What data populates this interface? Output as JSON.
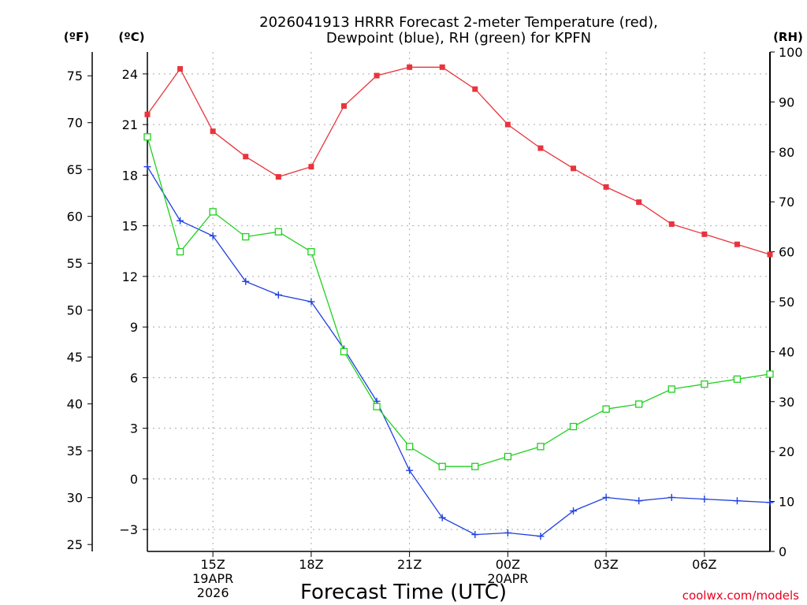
{
  "chart_data": {
    "type": "line",
    "title": [
      "2026041913 HRRR Forecast 2-meter Temperature (red),",
      "Dewpoint (blue), RH (green) for KPFN"
    ],
    "xlabel": "Forecast Time (UTC)",
    "credit": "coolwx.com/models",
    "units": {
      "fahrenheit": "(ºF)",
      "celsius": "(ºC)",
      "rh": "(RH)"
    },
    "x_hours": [
      13,
      14,
      15,
      16,
      17,
      18,
      19,
      20,
      21,
      22,
      23,
      24,
      25,
      26,
      27,
      28,
      29,
      30,
      31,
      32
    ],
    "xlim": [
      13,
      32
    ],
    "x_ticks": [
      {
        "hour": 15,
        "labels": [
          "15Z",
          "19APR",
          "2026"
        ]
      },
      {
        "hour": 18,
        "labels": [
          "18Z"
        ]
      },
      {
        "hour": 21,
        "labels": [
          "21Z"
        ]
      },
      {
        "hour": 24,
        "labels": [
          "00Z",
          "20APR"
        ]
      },
      {
        "hour": 27,
        "labels": [
          "03Z"
        ]
      },
      {
        "hour": 30,
        "labels": [
          "06Z"
        ]
      }
    ],
    "celsius_axis": {
      "ylim": [
        -4.3,
        25.3
      ],
      "ticks": [
        -3,
        0,
        3,
        6,
        9,
        12,
        15,
        18,
        21,
        24
      ]
    },
    "fahrenheit_ticks": [
      25,
      30,
      35,
      40,
      45,
      50,
      55,
      60,
      65,
      70,
      75
    ],
    "rh_axis": {
      "ylim": [
        0,
        100
      ],
      "ticks": [
        0,
        10,
        20,
        30,
        40,
        50,
        60,
        70,
        80,
        90,
        100
      ]
    },
    "grid": true,
    "series": [
      {
        "name": "2-meter Temperature",
        "axis": "celsius",
        "color": "#e8343c",
        "marker": "filled-square",
        "values": [
          21.6,
          24.3,
          20.6,
          19.1,
          17.9,
          18.5,
          22.1,
          23.9,
          24.4,
          24.4,
          23.1,
          21.0,
          19.6,
          18.4,
          17.3,
          16.4,
          15.1,
          14.5,
          13.9,
          13.3
        ]
      },
      {
        "name": "Dewpoint",
        "axis": "celsius",
        "color": "#2040e0",
        "marker": "plus",
        "values": [
          18.5,
          15.3,
          14.4,
          11.7,
          10.9,
          10.5,
          7.7,
          4.6,
          0.5,
          -2.3,
          -3.3,
          -3.2,
          -3.4,
          -1.9,
          -1.1,
          -1.3,
          -1.1,
          -1.2,
          -1.3,
          -1.4
        ]
      },
      {
        "name": "RH",
        "axis": "rh",
        "color": "#20d020",
        "marker": "open-square",
        "values": [
          83,
          60,
          68,
          63,
          64,
          60,
          40,
          29,
          21,
          17,
          17,
          19,
          21,
          25,
          28.5,
          29.5,
          32.5,
          33.5,
          34.5,
          35.5
        ]
      }
    ]
  }
}
